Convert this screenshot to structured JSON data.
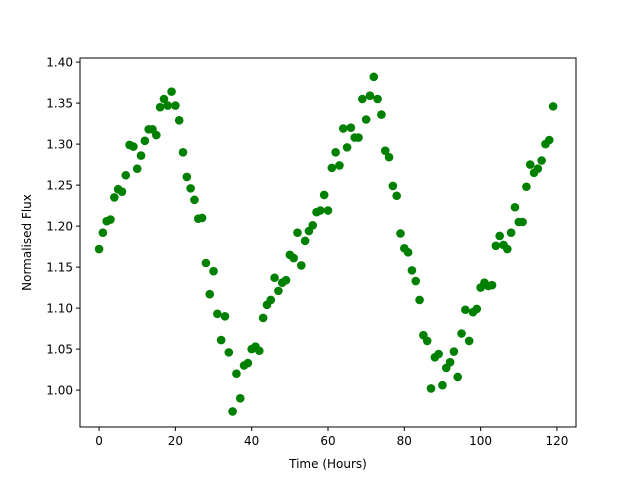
{
  "chart_data": {
    "type": "scatter",
    "title": "",
    "xlabel": "Time (Hours)",
    "ylabel": "Normalised Flux",
    "xlim": [
      -5,
      125
    ],
    "ylim": [
      0.955,
      1.405
    ],
    "xticks": [
      0,
      20,
      40,
      60,
      80,
      100,
      120
    ],
    "xtick_labels": [
      "0",
      "20",
      "40",
      "60",
      "80",
      "100",
      "120"
    ],
    "yticks": [
      1.0,
      1.05,
      1.1,
      1.15,
      1.2,
      1.25,
      1.3,
      1.35,
      1.4
    ],
    "ytick_labels": [
      "1.00",
      "1.05",
      "1.10",
      "1.15",
      "1.20",
      "1.25",
      "1.30",
      "1.35",
      "1.40"
    ],
    "grid": false,
    "legend": "none",
    "marker_color": "#008000",
    "series": [
      {
        "x": [
          0,
          1,
          2,
          3,
          4,
          5,
          6,
          7,
          8,
          9,
          10,
          11,
          12,
          13,
          14,
          15,
          16,
          17,
          18,
          19,
          20,
          21,
          22,
          23,
          24,
          25,
          26,
          27,
          28,
          29,
          30,
          31,
          32,
          33,
          34,
          35,
          36,
          37,
          38,
          39,
          40,
          41,
          42,
          43,
          44,
          45,
          46,
          47,
          48,
          49,
          50,
          51,
          52,
          53,
          54,
          55,
          56,
          57,
          58,
          59,
          60,
          61,
          62,
          63,
          64,
          65,
          66,
          67,
          68,
          69,
          70,
          71,
          72,
          73,
          74,
          75,
          76,
          77,
          78,
          79,
          80,
          81,
          82,
          83,
          84,
          85,
          86,
          87,
          88,
          89,
          90,
          91,
          92,
          93,
          94,
          95,
          96,
          97,
          98,
          99,
          100,
          101,
          102,
          103,
          104,
          105,
          106,
          107,
          108,
          109,
          110,
          111,
          112,
          113,
          114,
          115,
          116,
          117,
          118,
          119
        ],
        "y": [
          1.172,
          1.192,
          1.206,
          1.208,
          1.235,
          1.245,
          1.242,
          1.262,
          1.299,
          1.297,
          1.27,
          1.286,
          1.304,
          1.318,
          1.318,
          1.311,
          1.345,
          1.355,
          1.347,
          1.364,
          1.347,
          1.329,
          1.29,
          1.26,
          1.246,
          1.232,
          1.209,
          1.21,
          1.155,
          1.117,
          1.145,
          1.093,
          1.061,
          1.09,
          1.046,
          0.974,
          1.02,
          0.99,
          1.03,
          1.033,
          1.05,
          1.053,
          1.048,
          1.088,
          1.104,
          1.11,
          1.137,
          1.121,
          1.131,
          1.134,
          1.165,
          1.161,
          1.192,
          1.152,
          1.182,
          1.194,
          1.201,
          1.217,
          1.219,
          1.238,
          1.219,
          1.271,
          1.29,
          1.274,
          1.319,
          1.296,
          1.32,
          1.308,
          1.308,
          1.355,
          1.33,
          1.359,
          1.382,
          1.355,
          1.336,
          1.292,
          1.284,
          1.249,
          1.237,
          1.191,
          1.173,
          1.168,
          1.146,
          1.133,
          1.11,
          1.067,
          1.06,
          1.002,
          1.04,
          1.044,
          1.006,
          1.027,
          1.034,
          1.047,
          1.016,
          1.069,
          1.098,
          1.06,
          1.095,
          1.099,
          1.125,
          1.131,
          1.127,
          1.128,
          1.176,
          1.188,
          1.177,
          1.172,
          1.192,
          1.223,
          1.205,
          1.205,
          1.248,
          1.275,
          1.265,
          1.27,
          1.28,
          1.3,
          1.305,
          1.346
        ]
      }
    ]
  }
}
